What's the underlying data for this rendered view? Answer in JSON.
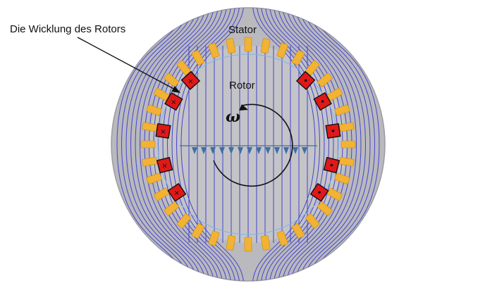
{
  "labels": {
    "rotor_winding": "Die Wicklung des Rotors",
    "stator": "Stator",
    "rotor": "Rotor",
    "omega": "ω"
  },
  "colors": {
    "stator_fill": "#b9b9be",
    "stator_edge": "#d8d8dc",
    "field_line": "#4444cc",
    "rotor_slot": "#f2b233",
    "winding_fill": "#e01818",
    "flux_arrow": "#3f6f9f",
    "airgap": "#7fb3e6"
  },
  "winding_markers": {
    "left": "×",
    "right": "•"
  }
}
